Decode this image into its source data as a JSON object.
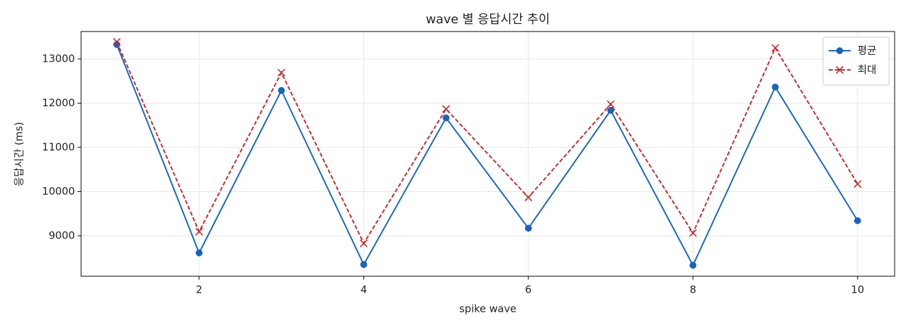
{
  "chart_data": {
    "type": "line",
    "title": "wave 별 응답시간 추이",
    "x_label": "spike wave",
    "y_label": "응답시간 (ms)",
    "x": [
      1,
      2,
      3,
      4,
      5,
      6,
      7,
      8,
      9,
      10
    ],
    "series": [
      {
        "name": "평균",
        "color": "#1565c0",
        "linestyle": "solid",
        "marker": "circle",
        "values": [
          13326,
          8612,
          12287,
          8349,
          11667,
          9171,
          11837,
          8333,
          12364,
          9341
        ]
      },
      {
        "name": "최대",
        "color": "#c62828",
        "linestyle": "dashed",
        "marker": "x",
        "values": [
          13388,
          9093,
          12690,
          8829,
          11868,
          9868,
          11977,
          9062,
          13248,
          10171
        ]
      }
    ],
    "xlim": [
      0.566,
      10.45
    ],
    "ylim": [
      8085,
      13620
    ],
    "xticks": [
      2,
      4,
      6,
      8,
      10
    ],
    "yticks": [
      9000,
      10000,
      11000,
      12000,
      13000
    ],
    "grid": true,
    "legend": "upper right"
  }
}
